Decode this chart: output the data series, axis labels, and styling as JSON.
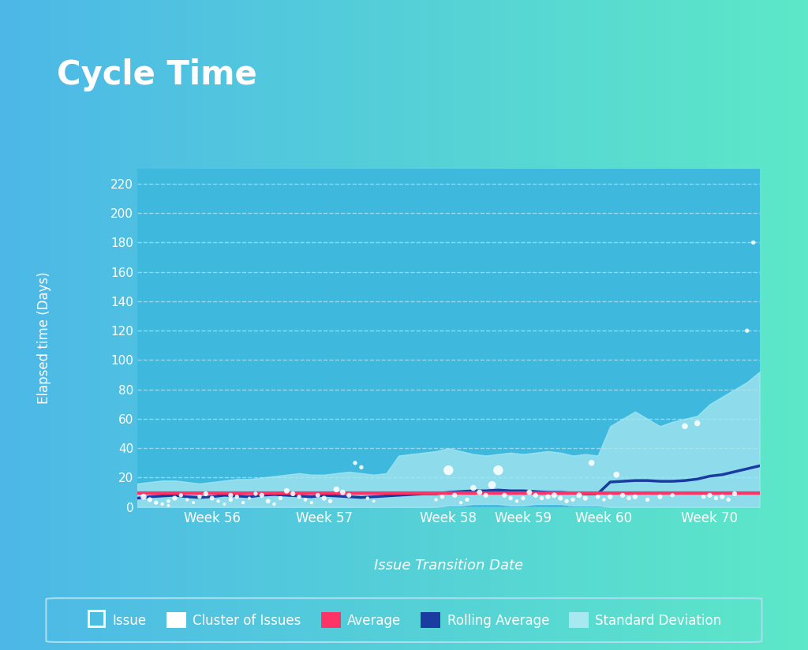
{
  "title": "Cycle Time",
  "xlabel": "Issue Transition Date",
  "ylabel": "Elapsed time (Days)",
  "xtick_labels": [
    "Week 56",
    "Week 57",
    "Week 58",
    "Week 59",
    "Week 60",
    "Week 70"
  ],
  "ytick_values": [
    0,
    20,
    40,
    60,
    80,
    100,
    120,
    140,
    160,
    180,
    200,
    220
  ],
  "ylim": [
    0,
    230
  ],
  "xlim": [
    0,
    100
  ],
  "avg_line_y": 9.5,
  "bg_gradient_left": "#4db8e8",
  "bg_gradient_right": "#5de8c8",
  "plot_bg": "#3fb8de",
  "std_fill_color": "#a8e8f0",
  "std_fill_alpha": 0.75,
  "rolling_avg_color": "#1a3ba0",
  "avg_line_color": "#ff3366",
  "scatter_color": "#ffffff",
  "grid_color": "#ffffff",
  "text_color": "#ffffff",
  "x_week56": 12,
  "x_week57": 30,
  "x_week58": 50,
  "x_week59": 62,
  "x_week60": 75,
  "x_week70": 92,
  "rolling_avg_x": [
    0,
    2,
    4,
    6,
    8,
    10,
    12,
    14,
    16,
    18,
    20,
    22,
    24,
    26,
    28,
    30,
    32,
    34,
    36,
    38,
    40,
    42,
    44,
    46,
    48,
    50,
    52,
    54,
    56,
    58,
    60,
    62,
    64,
    66,
    68,
    70,
    72,
    74,
    76,
    78,
    80,
    82,
    84,
    86,
    88,
    90,
    92,
    94,
    96,
    98,
    100
  ],
  "rolling_avg_y": [
    6,
    7,
    7.5,
    8,
    7,
    6.5,
    7,
    8,
    7.5,
    7,
    8,
    8.5,
    8,
    7.5,
    7,
    8,
    7.5,
    7,
    6.5,
    7,
    7.5,
    8,
    8.5,
    9,
    9,
    10,
    10.5,
    11,
    11,
    11.5,
    11,
    11,
    10.5,
    10,
    10,
    9.5,
    9,
    9,
    17,
    17.5,
    18,
    18,
    17.5,
    17.5,
    18,
    19,
    21,
    22,
    24,
    26,
    28
  ],
  "std_upper_x": [
    0,
    2,
    4,
    6,
    8,
    10,
    12,
    14,
    16,
    18,
    20,
    22,
    24,
    26,
    28,
    30,
    32,
    34,
    36,
    38,
    40,
    42,
    44,
    46,
    48,
    50,
    52,
    54,
    56,
    58,
    60,
    62,
    64,
    66,
    68,
    70,
    72,
    74,
    76,
    78,
    80,
    82,
    84,
    86,
    88,
    90,
    92,
    94,
    96,
    98,
    100
  ],
  "std_upper_y": [
    16,
    17,
    18,
    18,
    17,
    16,
    17,
    18,
    19,
    19,
    20,
    21,
    22,
    23,
    22,
    22,
    23,
    24,
    23,
    22,
    23,
    35,
    36,
    37,
    38,
    40,
    38,
    36,
    35,
    36,
    37,
    36,
    37,
    38,
    37,
    35,
    36,
    35,
    55,
    60,
    65,
    60,
    55,
    58,
    60,
    62,
    70,
    75,
    80,
    85,
    92
  ],
  "std_lower_y": [
    0,
    0,
    0,
    0,
    0,
    0,
    0,
    0,
    0,
    0,
    0,
    0,
    0,
    0,
    0,
    0,
    0,
    0,
    0,
    0,
    0,
    0,
    0,
    0,
    0,
    1,
    1,
    2,
    2,
    2,
    1,
    1,
    2,
    2,
    2,
    1,
    1,
    1,
    0,
    0,
    0,
    0,
    0,
    0,
    0,
    0,
    0,
    0,
    0,
    0,
    0
  ],
  "scatter_x": [
    1,
    2,
    3,
    4,
    5,
    5,
    6,
    7,
    8,
    9,
    10,
    11,
    12,
    13,
    14,
    15,
    15,
    16,
    17,
    18,
    19,
    20,
    21,
    22,
    23,
    24,
    25,
    26,
    27,
    28,
    29,
    30,
    31,
    32,
    33,
    34,
    35,
    36,
    37,
    38,
    48,
    49,
    50,
    51,
    52,
    53,
    54,
    55,
    56,
    57,
    58,
    59,
    60,
    61,
    62,
    63,
    64,
    65,
    66,
    67,
    68,
    69,
    70,
    71,
    72,
    73,
    74,
    75,
    76,
    77,
    78,
    79,
    80,
    82,
    84,
    86,
    88,
    90,
    91,
    92,
    93,
    94,
    95,
    96,
    98,
    99
  ],
  "scatter_y": [
    7,
    5,
    3,
    2,
    1,
    4,
    6,
    8,
    5,
    3,
    7,
    9,
    6,
    4,
    2,
    5,
    8,
    7,
    3,
    6,
    9,
    8,
    4,
    2,
    6,
    11,
    9,
    7,
    5,
    3,
    8,
    6,
    4,
    12,
    10,
    8,
    30,
    27,
    6,
    4,
    5,
    7,
    25,
    8,
    3,
    5,
    13,
    10,
    8,
    15,
    25,
    8,
    6,
    4,
    6,
    10,
    8,
    6,
    7,
    8,
    6,
    4,
    5,
    8,
    6,
    30,
    7,
    5,
    7,
    22,
    8,
    6,
    7,
    5,
    7,
    8,
    55,
    57,
    7,
    8,
    6,
    7,
    5,
    9,
    120,
    180
  ],
  "scatter_sizes": [
    30,
    20,
    15,
    10,
    8,
    12,
    20,
    15,
    10,
    8,
    15,
    20,
    18,
    10,
    8,
    15,
    20,
    15,
    10,
    8,
    15,
    20,
    18,
    10,
    15,
    25,
    20,
    15,
    12,
    10,
    18,
    20,
    15,
    30,
    25,
    20,
    15,
    15,
    10,
    8,
    10,
    15,
    80,
    20,
    10,
    15,
    30,
    25,
    20,
    50,
    80,
    20,
    15,
    10,
    15,
    25,
    20,
    15,
    20,
    25,
    20,
    15,
    15,
    25,
    20,
    30,
    15,
    10,
    20,
    30,
    20,
    15,
    20,
    15,
    20,
    15,
    30,
    30,
    15,
    20,
    15,
    20,
    15,
    20,
    15,
    15
  ]
}
